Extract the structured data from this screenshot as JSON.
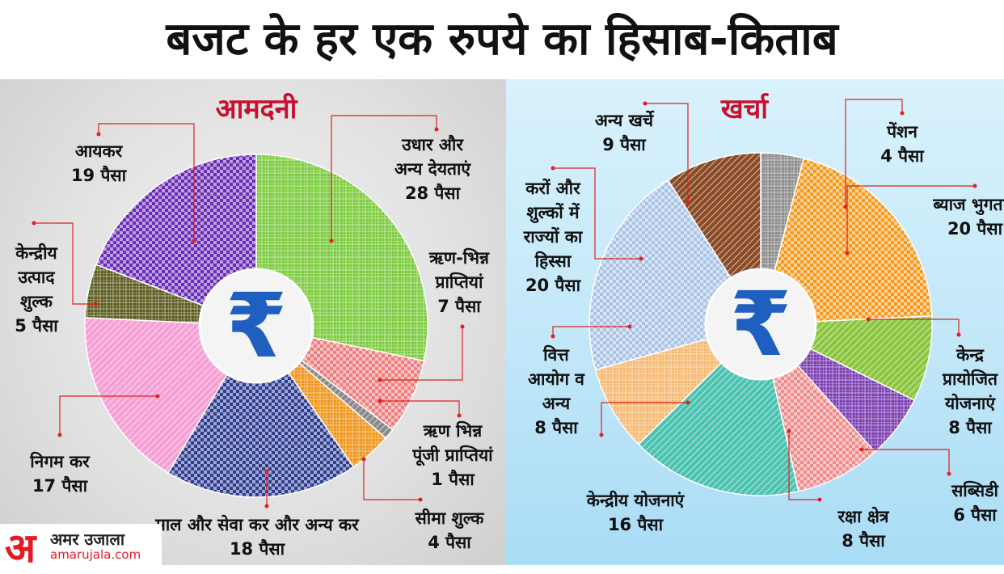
{
  "title": "बजट के हर एक रुपये का हिसाब-किताब",
  "brand": {
    "logo": "अ",
    "name": "अमर उजाला",
    "url": "amarujala.com"
  },
  "chart_data": [
    {
      "type": "pie",
      "title": "आमदनी",
      "center_symbol": "₹",
      "unit": "पैसा",
      "slices": [
        {
          "label": [
            "उधार और",
            "अन्य देयताएं"
          ],
          "value_label": "28 पैसा",
          "value": 28,
          "color": "#7ccb3e"
        },
        {
          "label": [
            "ऋण-भिन्न",
            "प्राप्तियां"
          ],
          "value_label": "7 पैसा",
          "value": 7,
          "color": "#f07c7c"
        },
        {
          "label": [
            "ऋण भिन्न",
            "पूंजी प्राप्तियां"
          ],
          "value_label": "1 पैसा",
          "value": 1,
          "color": "#8a8a8a"
        },
        {
          "label": [
            "सीमा शुल्क"
          ],
          "value_label": "4 पैसा",
          "value": 4,
          "color": "#f0951a"
        },
        {
          "label": [
            "माल और सेवा कर और अन्य कर"
          ],
          "value_label": "18 पैसा",
          "value": 18,
          "color": "#2e3d8f"
        },
        {
          "label": [
            "निगम कर"
          ],
          "value_label": "17 पैसा",
          "value": 17,
          "color": "#f6a0d6"
        },
        {
          "label": [
            "केन्द्रीय",
            "उत्पाद",
            "शुल्क"
          ],
          "value_label": "5 पैसा",
          "value": 5,
          "color": "#5b5b1e"
        },
        {
          "label": [
            "आयकर"
          ],
          "value_label": "19 पैसा",
          "value": 19,
          "color": "#6a2db5"
        }
      ]
    },
    {
      "type": "pie",
      "title": "खर्चा",
      "center_symbol": "₹",
      "unit": "पैसा",
      "slices": [
        {
          "label": [
            "पेंशन"
          ],
          "value_label": "4 पैसा",
          "value": 4,
          "color": "#8c8c8c"
        },
        {
          "label": [
            "ब्याज भुगतान"
          ],
          "value_label": "20 पैसा",
          "value": 20,
          "color": "#f39a1f"
        },
        {
          "label": [
            "केन्द्र",
            "प्रायोजित",
            "योजनाएं"
          ],
          "value_label": "8 पैसा",
          "value": 8,
          "color": "#8cc63f"
        },
        {
          "label": [
            "सब्सिडी"
          ],
          "value_label": "6 पैसा",
          "value": 6,
          "color": "#7b3fb0"
        },
        {
          "label": [
            "रक्षा क्षेत्र"
          ],
          "value_label": "8 पैसा",
          "value": 8,
          "color": "#f28a8a"
        },
        {
          "label": [
            "केन्द्रीय योजनाएं"
          ],
          "value_label": "16 पैसा",
          "value": 16,
          "color": "#4cc3b0"
        },
        {
          "label": [
            "वित्त",
            "आयोग व",
            "अन्य"
          ],
          "value_label": "8 पैसा",
          "value": 8,
          "color": "#f7b870"
        },
        {
          "label": [
            "करों और",
            "शुल्कों में",
            "राज्यों का",
            "हिस्सा"
          ],
          "value_label": "20 पैसा",
          "value": 20,
          "color": "#a9c3e6"
        },
        {
          "label": [
            "अन्य खर्चे"
          ],
          "value_label": "9 पैसा",
          "value": 9,
          "color": "#8a4a25"
        }
      ]
    }
  ]
}
